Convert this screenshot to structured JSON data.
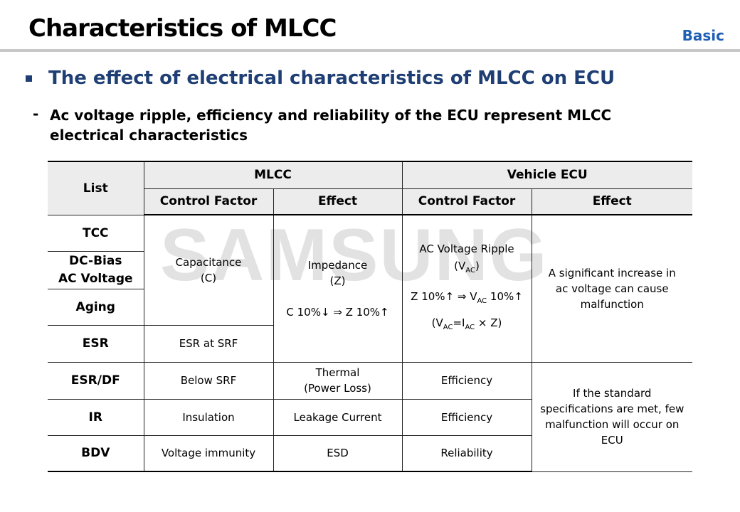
{
  "header": {
    "title": "Characteristics of MLCC",
    "tag": "Basic"
  },
  "bullet": "The effect of electrical characteristics of MLCC on ECU",
  "sub_bullet": "Ac voltage ripple, efficiency and reliability of the ECU represent MLCC electrical characteristics",
  "watermark": "SAMSUNG",
  "table": {
    "headers": {
      "list": "List",
      "mlcc": "MLCC",
      "ecu": "Vehicle ECU",
      "sub": [
        "Control Factor",
        "Effect",
        "Control Factor",
        "Effect"
      ]
    },
    "row_labels": [
      [
        "TCC"
      ],
      [
        "DC-Bias",
        "AC Voltage"
      ],
      [
        "Aging"
      ],
      [
        "ESR"
      ],
      [
        "ESR/DF"
      ],
      [
        "IR"
      ],
      [
        "BDV"
      ]
    ],
    "capacitance": [
      "Capacitance",
      "(C)"
    ],
    "esr_at_srf": "ESR at SRF",
    "impedance": {
      "lines": [
        "Impedance",
        "(Z)"
      ],
      "relation": "C 10%↓ ⇒ Z 10%↑"
    },
    "ripple": {
      "title": "AC Voltage Ripple",
      "symbol": [
        "(V",
        "AC",
        ")"
      ],
      "relation": [
        "Z 10%↑ ⇒ V",
        "AC",
        " 10%↑"
      ],
      "formula": [
        "(V",
        "AC",
        "=I",
        "AC",
        " × Z)"
      ]
    },
    "ecu_effect_1": "A significant increase in ac voltage can cause malfunction",
    "lower_rows": [
      {
        "control": "Below SRF",
        "effect": [
          "Thermal",
          "(Power Loss)"
        ],
        "ecu_control": "Efficiency"
      },
      {
        "control": "Insulation",
        "effect": [
          "Leakage Current"
        ],
        "ecu_control": "Efficiency"
      },
      {
        "control": "Voltage immunity",
        "effect": [
          "ESD"
        ],
        "ecu_control": "Reliability"
      }
    ],
    "ecu_effect_2": "If the standard specifications are met, few malfunction will occur on ECU"
  }
}
